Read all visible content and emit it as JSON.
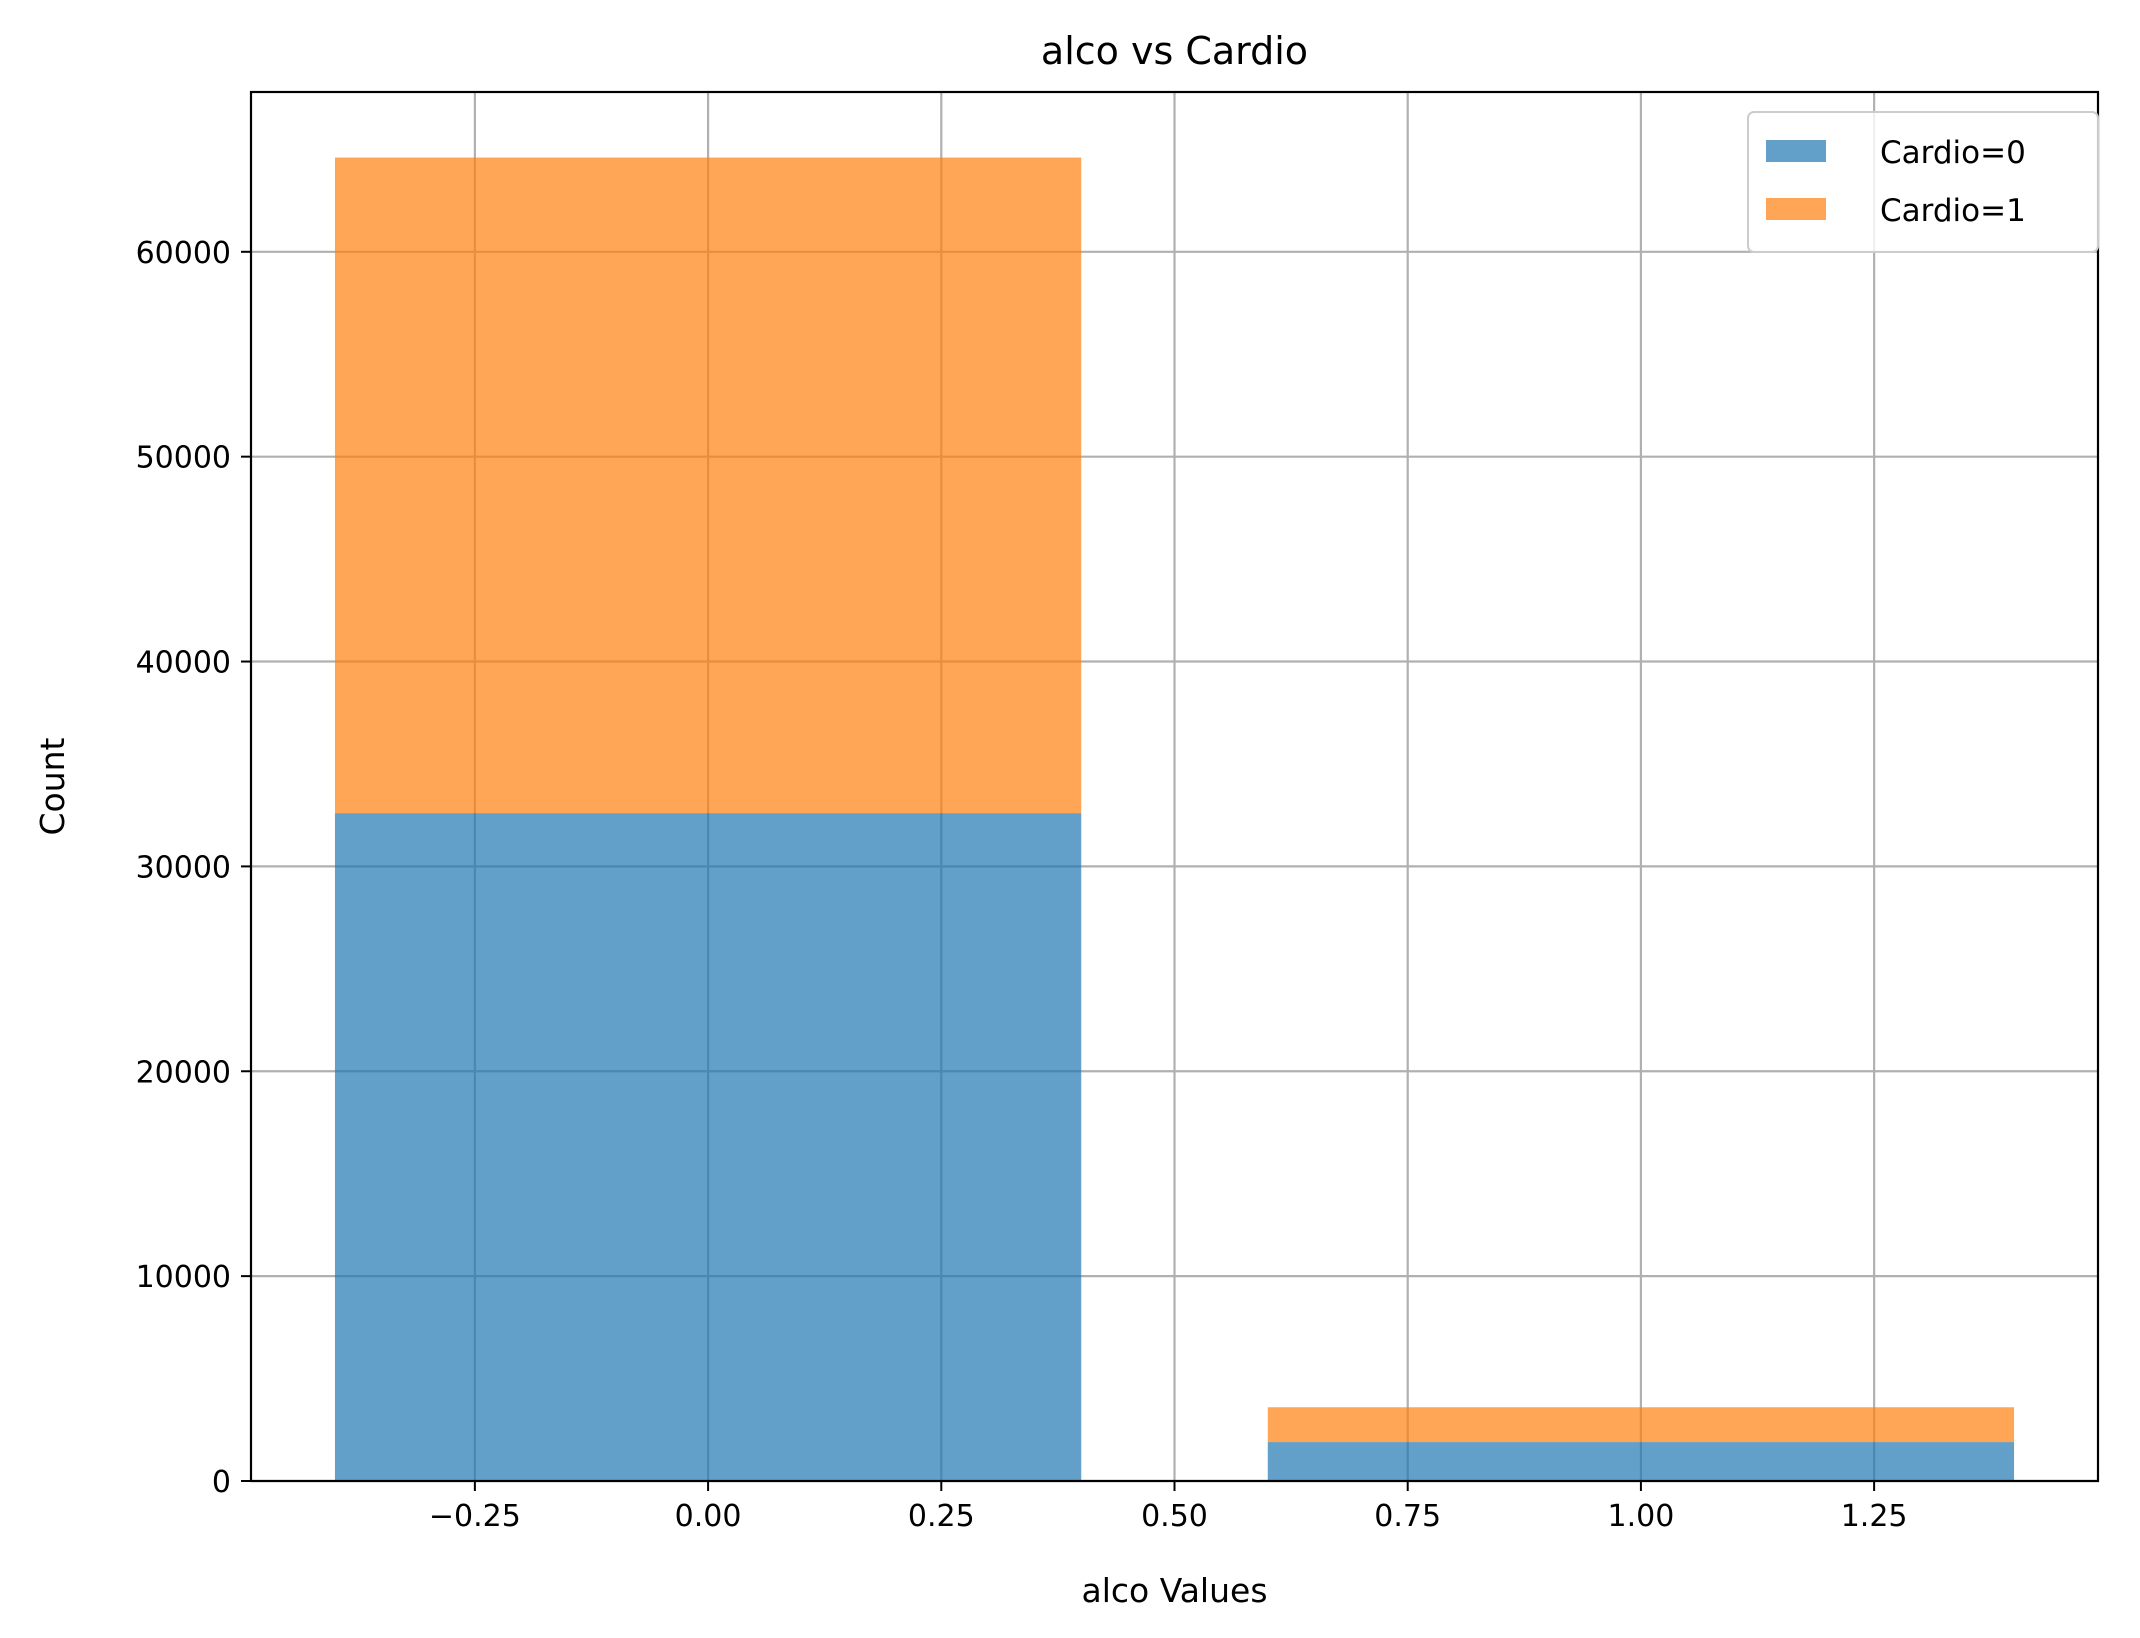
{
  "chart_data": {
    "type": "bar",
    "stacked": true,
    "title": "alco vs Cardio",
    "xlabel": "alco Values",
    "ylabel": "Count",
    "categories": [
      0,
      1
    ],
    "bar_width": 0.8,
    "series": [
      {
        "name": "Cardio=0",
        "values": [
          32600,
          1900
        ],
        "color": "#1f77b4",
        "opacity": 0.7
      },
      {
        "name": "Cardio=1",
        "values": [
          32000,
          1700
        ],
        "color": "#ff7f0e",
        "opacity": 0.7
      }
    ],
    "xlim": [
      -0.49,
      1.49
    ],
    "ylim": [
      0,
      67800
    ],
    "x_ticks": [
      -0.25,
      0.0,
      0.25,
      0.5,
      0.75,
      1.0,
      1.25
    ],
    "x_tick_labels": [
      "−0.25",
      "0.00",
      "0.25",
      "0.50",
      "0.75",
      "1.00",
      "1.25"
    ],
    "y_ticks": [
      0,
      10000,
      20000,
      30000,
      40000,
      50000,
      60000
    ],
    "y_tick_labels": [
      "0",
      "10000",
      "20000",
      "30000",
      "40000",
      "50000",
      "60000"
    ],
    "grid": true,
    "legend_position": "top-right"
  }
}
